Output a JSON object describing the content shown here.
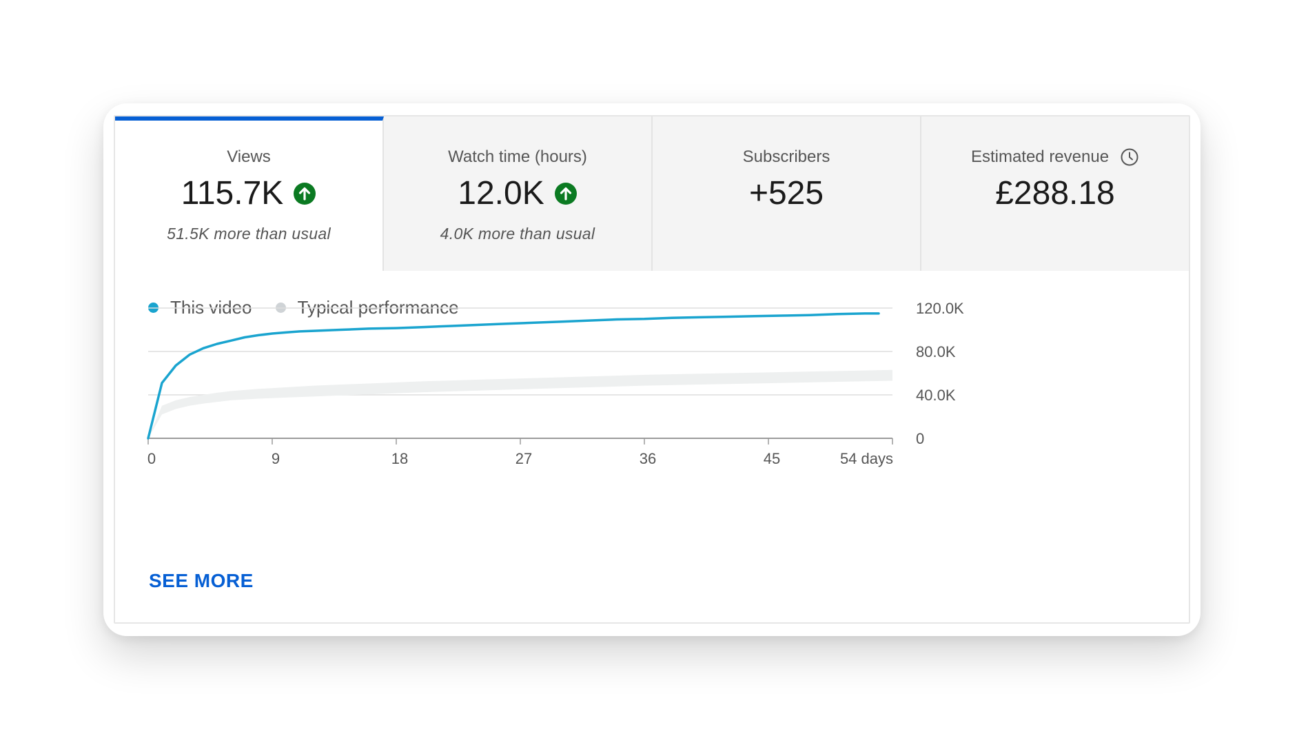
{
  "tabs": [
    {
      "title": "Views",
      "value": "115.7K",
      "trend_icon": "arrow-up-circle-icon",
      "sub": "51.5K more than usual",
      "active": true
    },
    {
      "title": "Watch time (hours)",
      "value": "12.0K",
      "trend_icon": "arrow-up-circle-icon",
      "sub": "4.0K more than usual",
      "active": false
    },
    {
      "title": "Subscribers",
      "value": "+525",
      "active": false
    },
    {
      "title": "Estimated revenue",
      "value": "£288.18",
      "title_icon": "clock-icon",
      "active": false
    }
  ],
  "colors": {
    "accent": "#065fd4",
    "this_video": "#1aa4cf",
    "typical": "#cfd3d6",
    "typical_band": "#eef0f0",
    "trend_up": "#0b7a22"
  },
  "legend": [
    {
      "label": "This video",
      "color": "#1aa4cf"
    },
    {
      "label": "Typical performance",
      "color": "#cfd3d6"
    }
  ],
  "see_more": "SEE MORE",
  "chart_data": {
    "type": "line",
    "x_ticks": [
      "0",
      "9",
      "18",
      "27",
      "36",
      "45",
      "54 days"
    ],
    "x_tick_values": [
      0,
      9,
      18,
      27,
      36,
      45,
      54
    ],
    "y_ticks": [
      "0",
      "40.0K",
      "80.0K",
      "120.0K"
    ],
    "y_tick_values": [
      0,
      40000,
      80000,
      120000
    ],
    "xlim": [
      0,
      54
    ],
    "ylim": [
      0,
      120000
    ],
    "grid": true,
    "legend_position": "top-left",
    "series": [
      {
        "name": "This video",
        "x": [
          0,
          1,
          2,
          3,
          4,
          5,
          6,
          7,
          8,
          9,
          10,
          11,
          12,
          14,
          16,
          18,
          20,
          22,
          24,
          26,
          28,
          30,
          32,
          34,
          36,
          38,
          40,
          42,
          44,
          46,
          48,
          50,
          52,
          53
        ],
        "y": [
          0,
          51000,
          67000,
          77000,
          83000,
          87000,
          90000,
          93000,
          95000,
          96500,
          97500,
          98500,
          99000,
          100000,
          101000,
          101500,
          102500,
          103500,
          104500,
          105500,
          106500,
          107500,
          108500,
          109500,
          110000,
          111000,
          111500,
          112000,
          112500,
          113000,
          113500,
          114500,
          115000,
          115000
        ]
      },
      {
        "name": "Typical performance",
        "x": [
          0,
          1,
          2,
          3,
          4,
          5,
          6,
          8,
          10,
          12,
          14,
          16,
          18,
          20,
          24,
          28,
          32,
          36,
          40,
          44,
          48,
          52,
          54
        ],
        "y_low": [
          0,
          22000,
          27000,
          30000,
          32000,
          33500,
          35000,
          36500,
          37500,
          38500,
          39500,
          40500,
          41500,
          42500,
          44000,
          45500,
          47000,
          48500,
          49500,
          50500,
          51500,
          52500,
          53000
        ],
        "y_high": [
          0,
          30000,
          35000,
          38000,
          40000,
          42000,
          43500,
          45500,
          47000,
          48500,
          49500,
          50500,
          51500,
          52500,
          54000,
          55500,
          57000,
          58500,
          59500,
          60500,
          61500,
          62500,
          63000
        ]
      }
    ]
  }
}
